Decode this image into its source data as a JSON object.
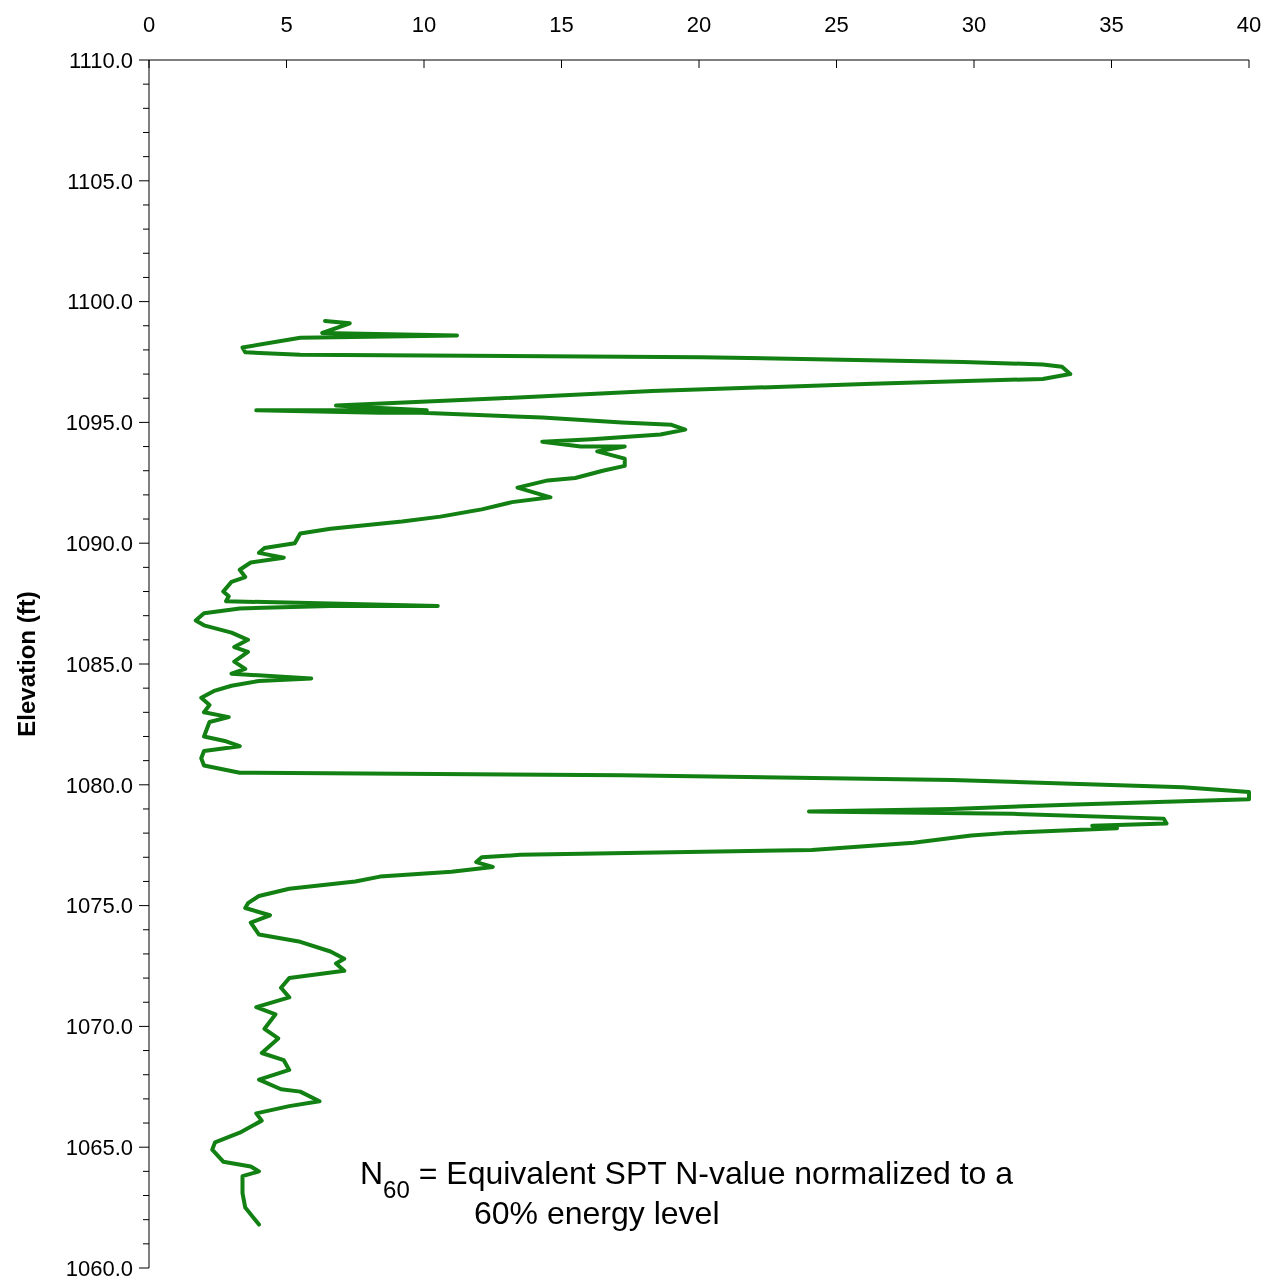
{
  "chart_data": {
    "type": "line",
    "ylabel": "Elevation (ft)",
    "annotations": [
      "N$_{60}$ = Equivalent SPT N-value normalized to a 60% energy level"
    ],
    "xlim": [
      0,
      40
    ],
    "xticks": [
      0,
      5,
      10,
      15,
      20,
      25,
      30,
      35,
      40
    ],
    "ylim": [
      1060,
      1110
    ],
    "yticks": [
      {
        "value": 1060,
        "label": "1060.0"
      },
      {
        "value": 1061,
        "label": null
      },
      {
        "value": 1062,
        "label": null
      },
      {
        "value": 1063,
        "label": null
      },
      {
        "value": 1064,
        "label": null
      },
      {
        "value": 1065,
        "label": "1065.0"
      },
      {
        "value": 1066,
        "label": null
      },
      {
        "value": 1067,
        "label": null
      },
      {
        "value": 1068,
        "label": null
      },
      {
        "value": 1069,
        "label": null
      },
      {
        "value": 1070,
        "label": "1070.0"
      },
      {
        "value": 1071,
        "label": null
      },
      {
        "value": 1072,
        "label": null
      },
      {
        "value": 1073,
        "label": null
      },
      {
        "value": 1074,
        "label": null
      },
      {
        "value": 1075,
        "label": "1075.0"
      },
      {
        "value": 1076,
        "label": null
      },
      {
        "value": 1077,
        "label": null
      },
      {
        "value": 1078,
        "label": null
      },
      {
        "value": 1079,
        "label": null
      },
      {
        "value": 1080,
        "label": "1080.0"
      },
      {
        "value": 1081,
        "label": null
      },
      {
        "value": 1082,
        "label": null
      },
      {
        "value": 1083,
        "label": null
      },
      {
        "value": 1084,
        "label": null
      },
      {
        "value": 1085,
        "label": "1085.0"
      },
      {
        "value": 1086,
        "label": null
      },
      {
        "value": 1087,
        "label": null
      },
      {
        "value": 1088,
        "label": null
      },
      {
        "value": 1089,
        "label": null
      },
      {
        "value": 1090,
        "label": "1090.0"
      },
      {
        "value": 1091,
        "label": null
      },
      {
        "value": 1092,
        "label": null
      },
      {
        "value": 1093,
        "label": null
      },
      {
        "value": 1094,
        "label": null
      },
      {
        "value": 1095,
        "label": "1095.0"
      },
      {
        "value": 1096,
        "label": null
      },
      {
        "value": 1097,
        "label": null
      },
      {
        "value": 1098,
        "label": null
      },
      {
        "value": 1099,
        "label": null
      },
      {
        "value": 1100,
        "label": "1100.0"
      },
      {
        "value": 1101,
        "label": null
      },
      {
        "value": 1102,
        "label": null
      },
      {
        "value": 1103,
        "label": null
      },
      {
        "value": 1104,
        "label": null
      },
      {
        "value": 1105,
        "label": "1105.0"
      },
      {
        "value": 1106,
        "label": null
      },
      {
        "value": 1107,
        "label": null
      },
      {
        "value": 1108,
        "label": null
      },
      {
        "value": 1109,
        "label": null
      },
      {
        "value": 1110,
        "label": "1110.0"
      }
    ],
    "series": [
      {
        "color": "#128012",
        "x": [
          6.4,
          7.3,
          6.3,
          11.2,
          5.5,
          3.4,
          3.5,
          5.5,
          20.1,
          29.6,
          32.5,
          33.2,
          33.5,
          32.5,
          26.3,
          18.3,
          12.8,
          6.8,
          8.4,
          10.1,
          3.9,
          8.4,
          9.9,
          14.3,
          17.2,
          19.0,
          19.5,
          18.6,
          16.1,
          14.3,
          15.7,
          17.3,
          16.3,
          17.3,
          17.3,
          16.5,
          15.5,
          14.5,
          13.4,
          14.6,
          13.2,
          12.1,
          10.6,
          9.2,
          6.6,
          5.5,
          5.3,
          4.2,
          4.0,
          4.9,
          3.7,
          3.3,
          3.5,
          3.0,
          2.7,
          2.9,
          2.8,
          6.6,
          10.5,
          6.6,
          3.3,
          2.0,
          1.7,
          2.0,
          3.0,
          3.6,
          3.1,
          3.6,
          3.1,
          3.5,
          3.0,
          5.9,
          4.0,
          3.0,
          2.4,
          1.9,
          2.2,
          2.0,
          2.9,
          2.2,
          2.0,
          2.8,
          3.3,
          2.0,
          1.9,
          2.0,
          3.3,
          17.2,
          29.2,
          37.6,
          40.0,
          40.0,
          34.0,
          29.2,
          24.0,
          31.4,
          36.9,
          37.0,
          34.3,
          35.2,
          31.1,
          29.9,
          27.8,
          24.1,
          13.5,
          12.1,
          11.9,
          12.5,
          11.0,
          8.4,
          7.5,
          5.1,
          4.0,
          3.6,
          3.5,
          4.4,
          3.7,
          4.0,
          5.5,
          6.6,
          7.1,
          6.8,
          7.1,
          5.1,
          4.8,
          5.1,
          3.9,
          4.6,
          4.2,
          4.7,
          4.1,
          4.9,
          5.1,
          4.0,
          4.8,
          5.5,
          6.2,
          5.1,
          3.9,
          4.1,
          3.3,
          2.4,
          2.3,
          2.7,
          3.7,
          4.0,
          3.4,
          3.4,
          3.5,
          4.0
        ],
        "values": [
          1099.2,
          1099.1,
          1098.7,
          1098.6,
          1098.5,
          1098.1,
          1097.9,
          1097.8,
          1097.7,
          1097.5,
          1097.4,
          1097.3,
          1097.0,
          1096.8,
          1096.6,
          1096.3,
          1096.0,
          1095.7,
          1095.6,
          1095.5,
          1095.5,
          1095.4,
          1095.4,
          1095.2,
          1095.0,
          1094.9,
          1094.7,
          1094.5,
          1094.3,
          1094.2,
          1094.0,
          1094.0,
          1093.8,
          1093.5,
          1093.2,
          1093.0,
          1092.7,
          1092.6,
          1092.3,
          1091.9,
          1091.7,
          1091.4,
          1091.1,
          1090.9,
          1090.6,
          1090.4,
          1090.0,
          1089.8,
          1089.6,
          1089.4,
          1089.2,
          1088.9,
          1088.6,
          1088.4,
          1088.0,
          1087.8,
          1087.6,
          1087.5,
          1087.4,
          1087.4,
          1087.3,
          1087.1,
          1086.8,
          1086.6,
          1086.3,
          1086.0,
          1085.7,
          1085.5,
          1085.1,
          1084.8,
          1084.6,
          1084.4,
          1084.3,
          1084.1,
          1083.9,
          1083.6,
          1083.3,
          1083.0,
          1082.8,
          1082.6,
          1082.0,
          1081.8,
          1081.6,
          1081.4,
          1081.1,
          1080.8,
          1080.5,
          1080.4,
          1080.2,
          1079.9,
          1079.7,
          1079.4,
          1079.2,
          1079.0,
          1078.9,
          1078.8,
          1078.6,
          1078.4,
          1078.3,
          1078.2,
          1078.0,
          1077.9,
          1077.6,
          1077.3,
          1077.1,
          1077.0,
          1076.8,
          1076.6,
          1076.4,
          1076.2,
          1076.0,
          1075.7,
          1075.4,
          1075.1,
          1074.9,
          1074.6,
          1074.3,
          1073.8,
          1073.5,
          1073.1,
          1072.8,
          1072.6,
          1072.3,
          1072.0,
          1071.6,
          1071.2,
          1070.8,
          1070.5,
          1069.9,
          1069.5,
          1068.9,
          1068.6,
          1068.2,
          1067.8,
          1067.4,
          1067.3,
          1066.9,
          1066.7,
          1066.4,
          1066.1,
          1065.6,
          1065.2,
          1064.9,
          1064.4,
          1064.2,
          1064.0,
          1063.8,
          1063.1,
          1062.5,
          1061.8
        ]
      }
    ]
  }
}
